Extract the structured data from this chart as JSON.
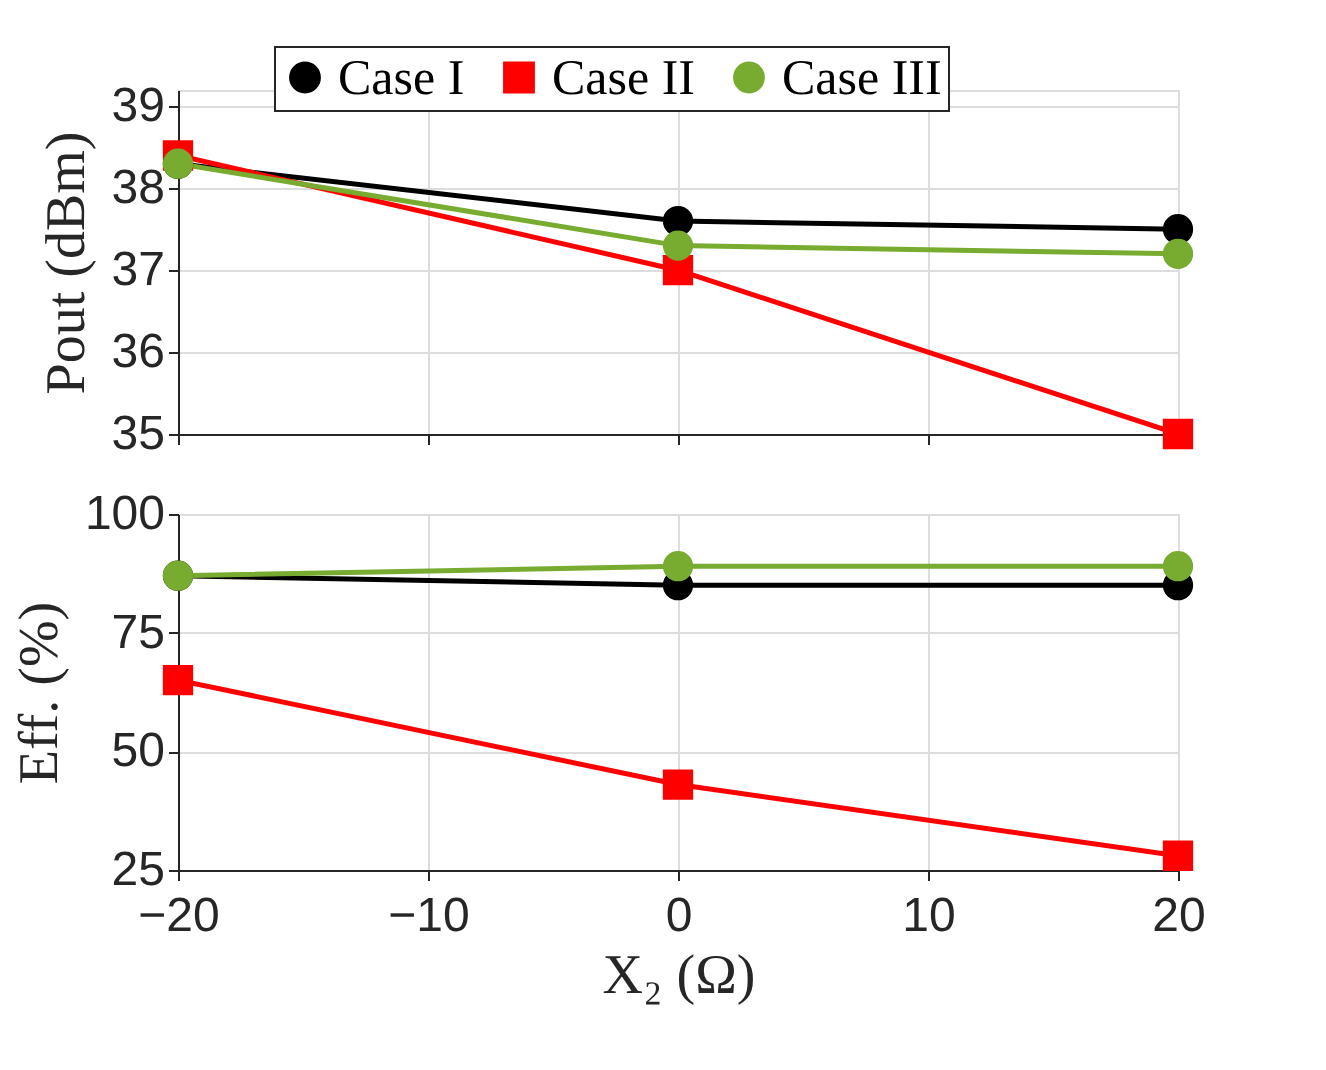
{
  "chart_data": [
    {
      "type": "line",
      "ylabel": "Pout (dBm)",
      "x": [
        -20,
        0,
        20
      ],
      "xlim": [
        -20,
        20
      ],
      "xticks": [
        -20,
        -10,
        0,
        10,
        20
      ],
      "ylim": [
        35,
        39.2
      ],
      "yticks": [
        35,
        36,
        37,
        38,
        39
      ],
      "grid": true,
      "legend": "top",
      "tick_labels": "y",
      "line_style": "solid",
      "series": [
        {
          "name": "Case I",
          "color": "#000000",
          "marker": "circle",
          "values": [
            38.3,
            37.6,
            37.5
          ]
        },
        {
          "name": "Case II",
          "color": "#ff0000",
          "marker": "square",
          "values": [
            38.4,
            37.0,
            35.0
          ]
        },
        {
          "name": "Case III",
          "color": "#77ac30",
          "marker": "circle",
          "values": [
            38.3,
            37.3,
            37.2
          ]
        }
      ]
    },
    {
      "type": "line",
      "xlabel": "X₂ (Ω)",
      "ylabel": "Eff. (%)",
      "x": [
        -20,
        0,
        20
      ],
      "xlim": [
        -20,
        20
      ],
      "xticks": [
        -20,
        -10,
        0,
        10,
        20
      ],
      "ylim": [
        25,
        100
      ],
      "yticks": [
        25,
        50,
        75,
        100
      ],
      "grid": true,
      "legend": false,
      "line_style": "solid",
      "series": [
        {
          "color": "#000000",
          "marker": "circle",
          "values": [
            87,
            85,
            85
          ]
        },
        {
          "color": "#ff0000",
          "marker": "square",
          "values": [
            65,
            43,
            28
          ]
        },
        {
          "color": "#77ac30",
          "marker": "circle",
          "values": [
            87,
            89,
            89
          ]
        }
      ]
    }
  ]
}
